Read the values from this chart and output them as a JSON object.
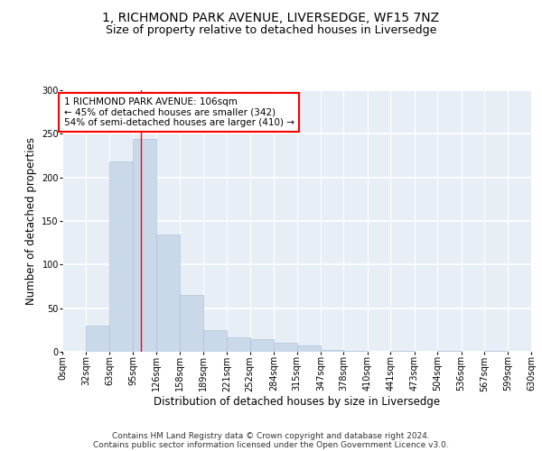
{
  "title": "1, RICHMOND PARK AVENUE, LIVERSEDGE, WF15 7NZ",
  "subtitle": "Size of property relative to detached houses in Liversedge",
  "xlabel": "Distribution of detached houses by size in Liversedge",
  "ylabel": "Number of detached properties",
  "bar_color": "#c9d9ea",
  "bar_edge_color": "#aec4d8",
  "background_color": "#e8eef6",
  "grid_color": "#ffffff",
  "bin_edges": [
    0,
    32,
    63,
    95,
    126,
    158,
    189,
    221,
    252,
    284,
    315,
    347,
    378,
    410,
    441,
    473,
    504,
    536,
    567,
    599,
    630
  ],
  "bin_labels": [
    "0sqm",
    "32sqm",
    "63sqm",
    "95sqm",
    "126sqm",
    "158sqm",
    "189sqm",
    "221sqm",
    "252sqm",
    "284sqm",
    "315sqm",
    "347sqm",
    "378sqm",
    "410sqm",
    "441sqm",
    "473sqm",
    "504sqm",
    "536sqm",
    "567sqm",
    "599sqm",
    "630sqm"
  ],
  "values": [
    0,
    30,
    218,
    244,
    135,
    65,
    25,
    17,
    14,
    10,
    7,
    2,
    1,
    0,
    1,
    0,
    1,
    0,
    1,
    0
  ],
  "vline_x": 106,
  "annotation_line1": "1 RICHMOND PARK AVENUE: 106sqm",
  "annotation_line2": "← 45% of detached houses are smaller (342)",
  "annotation_line3": "54% of semi-detached houses are larger (410) →",
  "ylim": [
    0,
    300
  ],
  "yticks": [
    0,
    50,
    100,
    150,
    200,
    250,
    300
  ],
  "footer_line1": "Contains HM Land Registry data © Crown copyright and database right 2024.",
  "footer_line2": "Contains public sector information licensed under the Open Government Licence v3.0.",
  "title_fontsize": 10,
  "subtitle_fontsize": 9,
  "axis_label_fontsize": 8.5,
  "tick_fontsize": 7,
  "annotation_fontsize": 7.5,
  "footer_fontsize": 6.5
}
